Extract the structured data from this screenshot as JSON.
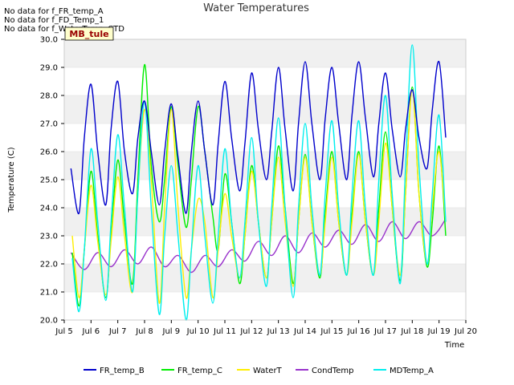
{
  "messages": [
    "No data for f_FR_temp_A",
    "No data for f_FD_Temp_1",
    "No data for f_WaterTemp_CTD"
  ],
  "site_label": "MB_tule",
  "colors": {
    "FR_temp_B": "#0000cc",
    "FR_temp_C": "#00ee00",
    "WaterT": "#ffee00",
    "CondTemp": "#9933cc",
    "MDTemp_A": "#00eeee",
    "band": "#f0f0f0",
    "site_label_bg": "#ffffcc",
    "site_label_text": "#990000"
  },
  "chart_data": {
    "type": "line",
    "title": "Water Temperatures",
    "xlabel": "Time",
    "ylabel": "Temperature (C)",
    "xlim": [
      5,
      20
    ],
    "ylim": [
      20.0,
      30.0
    ],
    "x_ticks": [
      5,
      6,
      7,
      8,
      9,
      10,
      11,
      12,
      13,
      14,
      15,
      16,
      17,
      18,
      19,
      20
    ],
    "x_tick_labels": [
      "Jul 5",
      "Jul 6",
      "Jul 7",
      "Jul 8",
      "Jul 9",
      "Jul 10",
      "Jul 11",
      "Jul 12",
      "Jul 13",
      "Jul 14",
      "Jul 15",
      "Jul 16",
      "Jul 17",
      "Jul 18",
      "Jul 19",
      "Jul 20"
    ],
    "y_ticks": [
      20.0,
      21.0,
      22.0,
      23.0,
      24.0,
      25.0,
      26.0,
      27.0,
      28.0,
      29.0,
      30.0
    ],
    "y_tick_labels": [
      "20.0",
      "21.0",
      "22.0",
      "23.0",
      "24.0",
      "25.0",
      "26.0",
      "27.0",
      "28.0",
      "29.0",
      "30.0"
    ],
    "legend_position": "bottom",
    "series": [
      {
        "name": "FR_temp_B",
        "x": [
          5.25,
          5.55,
          5.75,
          6.0,
          6.25,
          6.55,
          6.75,
          7.0,
          7.25,
          7.55,
          7.75,
          8.0,
          8.25,
          8.55,
          8.75,
          9.0,
          9.25,
          9.55,
          9.75,
          10.0,
          10.25,
          10.55,
          10.75,
          11.0,
          11.25,
          11.55,
          11.75,
          12.0,
          12.25,
          12.55,
          12.75,
          13.0,
          13.25,
          13.55,
          13.75,
          14.0,
          14.25,
          14.55,
          14.75,
          15.0,
          15.25,
          15.55,
          15.75,
          16.0,
          16.25,
          16.55,
          16.75,
          17.0,
          17.25,
          17.55,
          17.75,
          18.0,
          18.25,
          18.55,
          18.75,
          19.0,
          19.25
        ],
        "y": [
          25.4,
          23.8,
          26.5,
          28.4,
          26.0,
          24.1,
          26.8,
          28.5,
          26.0,
          24.5,
          26.5,
          27.8,
          26.0,
          24.1,
          26.0,
          27.7,
          25.8,
          23.8,
          26.0,
          27.8,
          26.0,
          24.1,
          26.3,
          28.5,
          26.5,
          24.6,
          26.3,
          28.8,
          26.8,
          25.0,
          26.7,
          29.0,
          26.8,
          24.6,
          27.0,
          29.2,
          27.0,
          25.0,
          27.2,
          29.0,
          27.0,
          25.0,
          27.3,
          29.2,
          27.2,
          25.1,
          27.0,
          28.8,
          26.8,
          25.1,
          26.8,
          28.2,
          26.5,
          25.4,
          27.5,
          29.2,
          26.5
        ]
      },
      {
        "name": "FR_temp_C",
        "x": [
          5.3,
          5.55,
          5.75,
          6.0,
          6.25,
          6.55,
          6.75,
          7.0,
          7.25,
          7.55,
          7.75,
          8.0,
          8.25,
          8.55,
          8.75,
          9.0,
          9.25,
          9.55,
          9.75,
          10.0,
          10.25,
          10.55,
          10.75,
          11.0,
          11.25,
          11.55,
          11.75,
          12.0,
          12.25,
          12.55,
          12.75,
          13.0,
          13.25,
          13.55,
          13.75,
          14.0,
          14.25,
          14.55,
          14.75,
          15.0,
          15.25,
          15.55,
          15.75,
          16.0,
          16.25,
          16.55,
          16.75,
          17.0,
          17.25,
          17.55,
          17.75,
          18.0,
          18.25,
          18.55,
          18.75,
          19.0,
          19.25
        ],
        "y": [
          22.4,
          20.5,
          22.5,
          25.3,
          23.0,
          20.8,
          23.0,
          25.7,
          23.5,
          21.3,
          25.0,
          29.1,
          25.5,
          23.5,
          25.0,
          27.6,
          25.5,
          23.3,
          25.0,
          27.6,
          26.0,
          23.7,
          22.5,
          25.2,
          23.5,
          21.3,
          23.0,
          25.5,
          23.5,
          21.5,
          23.5,
          26.2,
          24.0,
          21.3,
          23.5,
          25.9,
          23.5,
          21.5,
          23.8,
          26.0,
          23.5,
          21.6,
          23.8,
          26.0,
          23.5,
          21.6,
          24.0,
          26.7,
          24.0,
          21.4,
          24.5,
          28.3,
          24.5,
          21.9,
          23.5,
          26.2,
          23.0
        ]
      },
      {
        "name": "WaterT",
        "x": [
          5.3,
          5.55,
          5.75,
          6.0,
          6.25,
          6.55,
          6.75,
          7.0,
          7.25,
          7.55,
          7.75,
          8.0,
          8.25,
          8.55,
          8.75,
          9.0,
          9.25,
          9.55,
          9.75,
          10.0,
          10.25,
          10.55,
          10.75,
          11.0,
          11.25,
          11.55,
          11.75,
          12.0,
          12.25,
          12.55,
          12.75,
          13.0,
          13.25,
          13.55,
          13.75,
          14.0,
          14.25,
          14.55,
          14.75,
          15.0,
          15.25,
          15.55,
          15.75,
          16.0,
          16.25,
          16.55,
          16.75,
          17.0,
          17.25,
          17.55,
          17.75,
          18.0,
          18.25,
          18.55,
          18.75,
          19.0,
          19.25
        ],
        "y": [
          23.0,
          20.8,
          22.5,
          24.8,
          22.8,
          20.9,
          22.8,
          25.1,
          23.0,
          21.0,
          24.5,
          27.5,
          25.0,
          20.6,
          24.0,
          27.5,
          24.0,
          20.8,
          22.5,
          24.3,
          23.5,
          20.8,
          22.5,
          24.5,
          23.0,
          21.5,
          23.0,
          25.3,
          23.5,
          21.5,
          23.5,
          25.8,
          23.5,
          21.2,
          23.5,
          25.8,
          23.5,
          21.6,
          23.5,
          25.8,
          23.5,
          21.6,
          23.5,
          25.9,
          23.5,
          21.6,
          23.5,
          26.3,
          24.0,
          21.6,
          24.5,
          28.2,
          24.5,
          22.0,
          24.0,
          26.0,
          23.5
        ]
      },
      {
        "name": "CondTemp",
        "x": [
          5.25,
          5.75,
          6.25,
          6.75,
          7.25,
          7.75,
          8.25,
          8.75,
          9.25,
          9.75,
          10.25,
          10.75,
          11.25,
          11.75,
          12.25,
          12.75,
          13.25,
          13.75,
          14.25,
          14.75,
          15.25,
          15.75,
          16.25,
          16.75,
          17.25,
          17.75,
          18.25,
          18.75,
          19.25
        ],
        "y": [
          22.4,
          21.8,
          22.4,
          21.9,
          22.5,
          22.0,
          22.6,
          21.9,
          22.3,
          21.7,
          22.3,
          21.9,
          22.5,
          22.1,
          22.8,
          22.3,
          23.0,
          22.4,
          23.1,
          22.6,
          23.2,
          22.7,
          23.4,
          22.8,
          23.5,
          22.9,
          23.5,
          23.0,
          23.6
        ]
      },
      {
        "name": "MDTemp_A",
        "x": [
          5.3,
          5.55,
          5.75,
          6.0,
          6.25,
          6.55,
          6.75,
          7.0,
          7.25,
          7.55,
          7.75,
          8.0,
          8.25,
          8.55,
          8.75,
          9.0,
          9.25,
          9.55,
          9.75,
          10.0,
          10.25,
          10.55,
          10.75,
          11.0,
          11.25,
          11.55,
          11.75,
          12.0,
          12.25,
          12.55,
          12.75,
          13.0,
          13.25,
          13.55,
          13.75,
          14.0,
          14.25,
          14.55,
          14.75,
          15.0,
          15.25,
          15.55,
          15.75,
          16.0,
          16.25,
          16.55,
          16.75,
          17.0,
          17.25,
          17.55,
          17.75,
          18.0,
          18.25,
          18.55,
          18.75,
          19.0,
          19.25
        ],
        "y": [
          22.2,
          20.3,
          22.5,
          26.1,
          23.5,
          20.7,
          23.5,
          26.6,
          24.0,
          21.0,
          24.5,
          27.8,
          24.0,
          20.2,
          23.0,
          25.5,
          23.0,
          20.0,
          22.5,
          25.5,
          23.0,
          20.6,
          23.0,
          26.1,
          23.5,
          21.5,
          23.5,
          26.5,
          23.5,
          21.2,
          24.0,
          27.2,
          24.0,
          20.8,
          24.0,
          27.0,
          24.0,
          21.6,
          24.5,
          27.1,
          24.0,
          21.6,
          24.5,
          27.1,
          24.0,
          21.6,
          25.0,
          28.0,
          24.5,
          21.3,
          25.5,
          29.8,
          25.5,
          22.0,
          24.5,
          27.3,
          23.5
        ]
      }
    ]
  }
}
